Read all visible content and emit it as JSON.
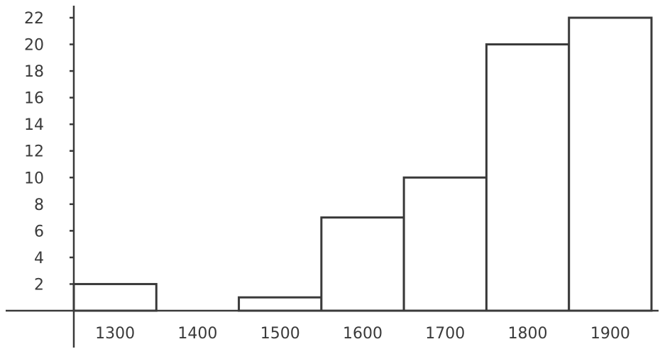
{
  "chart_data": {
    "type": "bar",
    "categories": [
      "1300",
      "1400",
      "1500",
      "1600",
      "1700",
      "1800",
      "1900"
    ],
    "values": [
      2,
      0,
      1,
      7,
      10,
      20,
      22
    ],
    "yticks": [
      "2",
      "4",
      "6",
      "8",
      "10",
      "12",
      "14",
      "16",
      "18",
      "20",
      "22"
    ],
    "ylim": [
      0,
      22
    ],
    "grid": false,
    "title": "",
    "xlabel": "",
    "ylabel": ""
  }
}
